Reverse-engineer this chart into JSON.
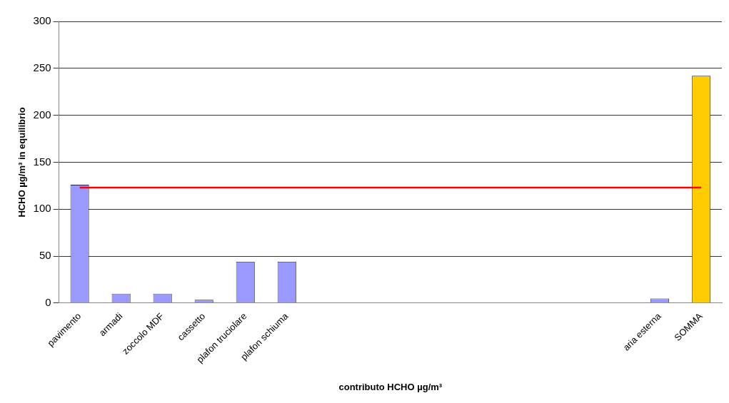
{
  "chart_data": {
    "type": "bar",
    "xlabel": "contributo HCHO µg/m³",
    "ylabel": "HCHO µg/m³ in equilibrio",
    "categories": [
      "pavimento",
      "armadi",
      "zoccolo MDF",
      "cassetto",
      "plafon truciolare",
      "plafon schiuma",
      null,
      null,
      null,
      null,
      null,
      null,
      null,
      null,
      "aria esterna",
      "SOMMA"
    ],
    "values": [
      126,
      10,
      10,
      3.5,
      44,
      44,
      null,
      null,
      null,
      null,
      null,
      null,
      null,
      null,
      5,
      242
    ],
    "colors": [
      "#9999ff",
      "#9999ff",
      "#9999ff",
      "#9999ff",
      "#9999ff",
      "#9999ff",
      "#9999ff",
      "#9999ff",
      "#9999ff",
      "#9999ff",
      "#9999ff",
      "#9999ff",
      "#9999ff",
      "#9999ff",
      "#9999ff",
      "#ffcc00"
    ],
    "ylim": [
      0,
      300
    ],
    "yticks": [
      0,
      50,
      100,
      150,
      200,
      250,
      300
    ],
    "grid": "y",
    "ref_lines": [
      {
        "axis": "y",
        "value": 123,
        "color": "#ff0000"
      }
    ]
  }
}
